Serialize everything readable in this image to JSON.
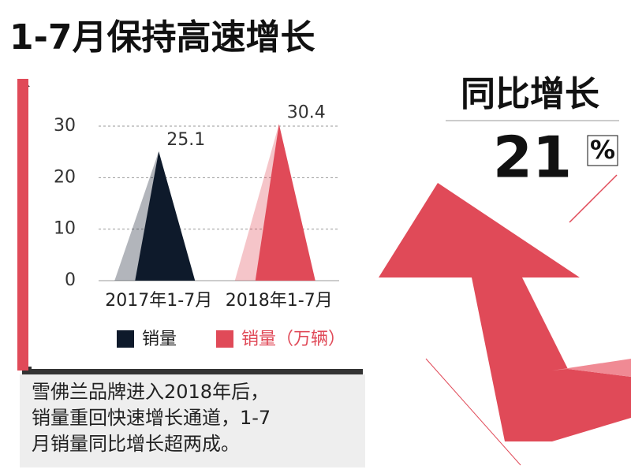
{
  "chart_data": {
    "type": "bar",
    "title": "1-7月保持高速增长",
    "categories": [
      "2017年1-7月",
      "2018年1-7月"
    ],
    "series": [
      {
        "name": "销量",
        "color": "#0e1a2b",
        "values": [
          25.1,
          null
        ]
      },
      {
        "name": "销量（万辆）",
        "color": "#e04a58",
        "values": [
          null,
          30.4
        ]
      }
    ],
    "ylim": [
      0,
      30
    ],
    "yticks": [
      0,
      10,
      20,
      30
    ],
    "grid": true
  },
  "headline": {
    "label": "同比增长",
    "value": 21,
    "unit": "%"
  },
  "caption": [
    "雪佛兰品牌进入2018年后，",
    "销量重回快速增长通道，1-7",
    "月销量同比增长超两成。"
  ]
}
